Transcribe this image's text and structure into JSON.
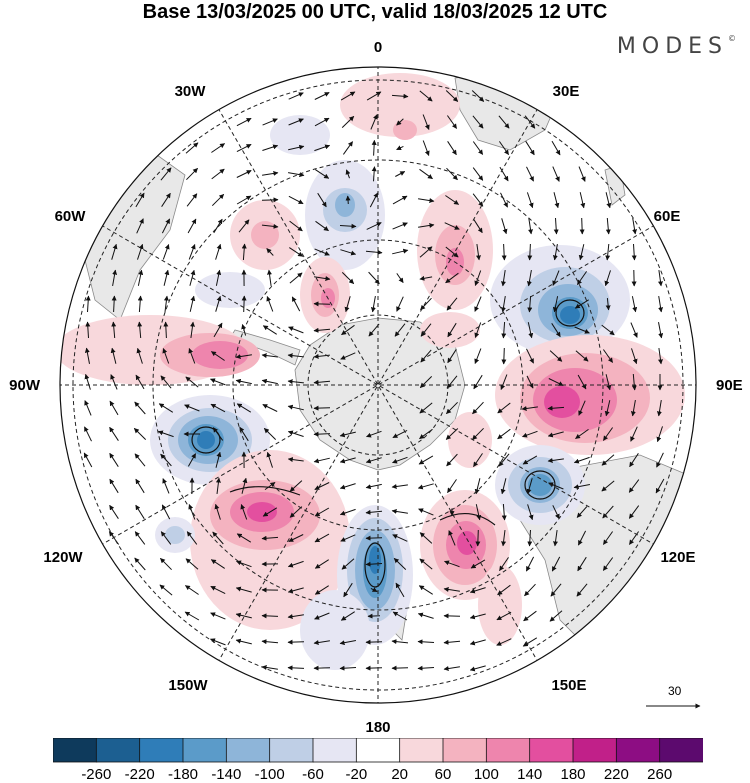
{
  "title": "Base 13/03/2025 00 UTC, valid 18/03/2025 12 UTC",
  "logo": "MODES",
  "longitude_labels": {
    "lon0": "0",
    "lon30e": "30E",
    "lon60e": "60E",
    "lon90e": "90E",
    "lon120e": "120E",
    "lon150e": "150E",
    "lon180": "180",
    "lon150w": "150W",
    "lon120w": "120W",
    "lon90w": "90W",
    "lon60w": "60W",
    "lon30w": "30W"
  },
  "reference_vector_label": "30",
  "colorbar": {
    "ticks": [
      "-260",
      "-220",
      "-180",
      "-140",
      "-100",
      "-60",
      "-20",
      "20",
      "60",
      "100",
      "140",
      "180",
      "220",
      "260"
    ],
    "colors": [
      "#0e3a5c",
      "#1c5f91",
      "#2f7db8",
      "#5b9bc9",
      "#8eb5d9",
      "#bfcfe6",
      "#e6e6f3",
      "#ffffff",
      "#f8d8dc",
      "#f4b3c0",
      "#ee85ad",
      "#e34f9f",
      "#c12089",
      "#8d0d83",
      "#5c0a6e"
    ]
  },
  "map_features": {
    "anomaly_centers": [
      {
        "name": "low-south-atlantic",
        "sign": "negative"
      },
      {
        "name": "high-west-south-atlantic",
        "sign": "positive"
      },
      {
        "name": "low-south-indian-ocean",
        "sign": "negative"
      },
      {
        "name": "high-indian-ocean-90e",
        "sign": "positive"
      },
      {
        "name": "low-southwest-australia",
        "sign": "negative"
      },
      {
        "name": "high-tasman",
        "sign": "positive"
      },
      {
        "name": "low-ross-sea",
        "sign": "negative"
      },
      {
        "name": "high-south-pacific",
        "sign": "positive"
      },
      {
        "name": "low-amundsen-sea",
        "sign": "negative"
      },
      {
        "name": "high-drake-passage",
        "sign": "positive"
      }
    ]
  }
}
